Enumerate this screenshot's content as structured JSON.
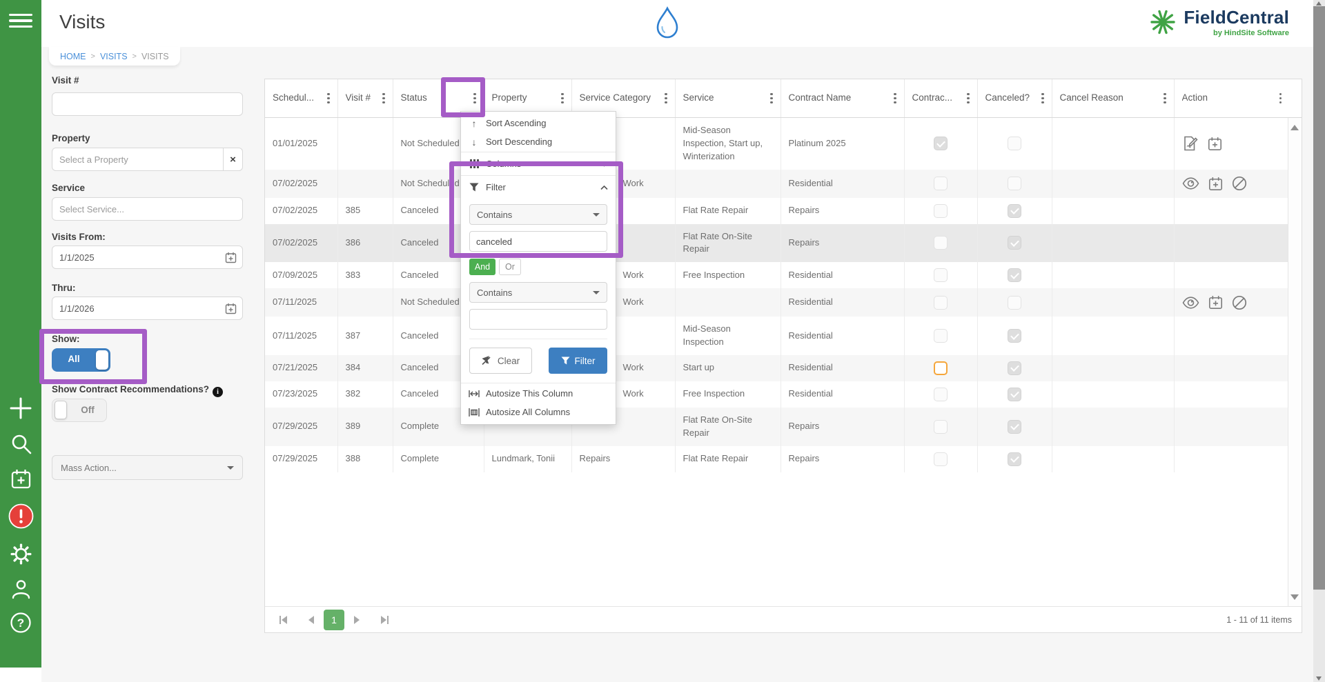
{
  "chrome": {
    "title": "Visits",
    "breadcrumb": {
      "items": [
        "HOME",
        "VISITS",
        "VISITS"
      ],
      "separator": ">"
    },
    "brand": {
      "name": "FieldCentral",
      "tagline": "by HindSite Software"
    }
  },
  "rail": {
    "icons": [
      "menu-icon",
      "plus-icon",
      "search-icon",
      "calendar-add-icon",
      "alert-icon",
      "gear-icon",
      "user-icon",
      "help-icon"
    ]
  },
  "filters": {
    "visit_number": {
      "label": "Visit #",
      "value": ""
    },
    "property": {
      "label": "Property",
      "placeholder": "Select a Property",
      "clear": "×"
    },
    "service": {
      "label": "Service",
      "placeholder": "Select Service..."
    },
    "visits_from": {
      "label": "Visits From:",
      "value": "1/1/2025"
    },
    "thru": {
      "label": "Thru:",
      "value": "1/1/2026"
    },
    "show": {
      "label": "Show:",
      "value": "All"
    },
    "contract_recommendations": {
      "label": "Show Contract Recommendations?",
      "value": "Off"
    },
    "mass_action": {
      "placeholder": "Mass Action..."
    }
  },
  "grid": {
    "columns": [
      {
        "label": "Schedul..."
      },
      {
        "label": "Visit #"
      },
      {
        "label": "Status"
      },
      {
        "label": "Property"
      },
      {
        "label": "Service Category"
      },
      {
        "label": "Service"
      },
      {
        "label": "Contract Name"
      },
      {
        "label": "Contrac..."
      },
      {
        "label": "Canceled?"
      },
      {
        "label": "Cancel Reason"
      },
      {
        "label": "Action"
      }
    ],
    "rows": [
      {
        "schedule_date": "01/01/2025",
        "visit_number": "",
        "status": "Not Scheduled",
        "property": "",
        "service_category": "",
        "category_shifted": false,
        "service": "Mid-Season Inspection, Start up, Winterization",
        "contract_name": "Platinum 2025",
        "contract_checked": true,
        "contract_focused": false,
        "canceled_checked": false,
        "cancel_reason": "",
        "actions": [
          "edit-contract",
          "schedule"
        ],
        "highlighted": false
      },
      {
        "schedule_date": "07/02/2025",
        "visit_number": "",
        "status": "Not Scheduled",
        "property": "",
        "service_category": "Work",
        "category_shifted": true,
        "service": "",
        "contract_name": "Residential",
        "contract_checked": false,
        "contract_focused": false,
        "canceled_checked": false,
        "cancel_reason": "",
        "actions": [
          "view",
          "schedule",
          "cancel"
        ],
        "highlighted": false
      },
      {
        "schedule_date": "07/02/2025",
        "visit_number": "385",
        "status": "Canceled",
        "property": "",
        "service_category": "",
        "category_shifted": false,
        "service": "Flat Rate Repair",
        "contract_name": "Repairs",
        "contract_checked": false,
        "contract_focused": false,
        "canceled_checked": true,
        "cancel_reason": "",
        "actions": [],
        "highlighted": false
      },
      {
        "schedule_date": "07/02/2025",
        "visit_number": "386",
        "status": "Canceled",
        "property": "",
        "service_category": "",
        "category_shifted": false,
        "service": "Flat Rate On-Site Repair",
        "contract_name": "Repairs",
        "contract_checked": false,
        "contract_focused": false,
        "canceled_checked": true,
        "cancel_reason": "",
        "actions": [],
        "highlighted": true
      },
      {
        "schedule_date": "07/09/2025",
        "visit_number": "383",
        "status": "Canceled",
        "property": "",
        "service_category": "Work",
        "category_shifted": true,
        "service": "Free Inspection",
        "contract_name": "Residential",
        "contract_checked": false,
        "contract_focused": false,
        "canceled_checked": true,
        "cancel_reason": "",
        "actions": [],
        "highlighted": false
      },
      {
        "schedule_date": "07/11/2025",
        "visit_number": "",
        "status": "Not Scheduled",
        "property": "",
        "service_category": "Work",
        "category_shifted": true,
        "service": "",
        "contract_name": "Residential",
        "contract_checked": false,
        "contract_focused": false,
        "canceled_checked": false,
        "cancel_reason": "",
        "actions": [
          "view",
          "schedule",
          "cancel"
        ],
        "highlighted": false
      },
      {
        "schedule_date": "07/11/2025",
        "visit_number": "387",
        "status": "Canceled",
        "property": "",
        "service_category": "",
        "category_shifted": false,
        "service": "Mid-Season Inspection",
        "contract_name": "Residential",
        "contract_checked": false,
        "contract_focused": false,
        "canceled_checked": true,
        "cancel_reason": "",
        "actions": [],
        "highlighted": false
      },
      {
        "schedule_date": "07/21/2025",
        "visit_number": "384",
        "status": "Canceled",
        "property": "",
        "service_category": "Work",
        "category_shifted": true,
        "service": "Start up",
        "contract_name": "Residential",
        "contract_checked": false,
        "contract_focused": true,
        "canceled_checked": true,
        "cancel_reason": "",
        "actions": [],
        "highlighted": false
      },
      {
        "schedule_date": "07/23/2025",
        "visit_number": "382",
        "status": "Canceled",
        "property": "",
        "service_category": "Work",
        "category_shifted": true,
        "service": "Free Inspection",
        "contract_name": "Residential",
        "contract_checked": false,
        "contract_focused": false,
        "canceled_checked": true,
        "cancel_reason": "",
        "actions": [],
        "highlighted": false
      },
      {
        "schedule_date": "07/29/2025",
        "visit_number": "389",
        "status": "Complete",
        "property": "",
        "service_category": "",
        "category_shifted": false,
        "service": "Flat Rate On-Site Repair",
        "contract_name": "Repairs",
        "contract_checked": false,
        "contract_focused": false,
        "canceled_checked": true,
        "cancel_reason": "",
        "actions": [],
        "highlighted": false
      },
      {
        "schedule_date": "07/29/2025",
        "visit_number": "388",
        "status": "Complete",
        "property": "Lundmark, Tonii",
        "service_category": "Repairs",
        "category_shifted": false,
        "service": "Flat Rate Repair",
        "contract_name": "Repairs",
        "contract_checked": false,
        "contract_focused": false,
        "canceled_checked": true,
        "cancel_reason": "",
        "actions": [],
        "highlighted": false
      }
    ]
  },
  "column_menu": {
    "sort_ascending": "Sort Ascending",
    "sort_descending": "Sort Descending",
    "columns": "Columns",
    "filter": "Filter",
    "operator1": "Contains",
    "value1": "canceled",
    "and_label": "And",
    "or_label": "Or",
    "operator2": "Contains",
    "value2": "",
    "clear_label": "Clear",
    "filter_label": "Filter",
    "autosize_column": "Autosize This Column",
    "autosize_all": "Autosize All Columns"
  },
  "pager": {
    "page": "1",
    "info": "1 - 11 of 11 items"
  },
  "colors": {
    "rail_green": "#3f9444",
    "brand_navy": "#1b3a5f",
    "brand_green": "#3fa344",
    "toggle_blue": "#3d7fc1",
    "and_green": "#4caf50",
    "pager_green": "#65b168",
    "alert_red": "#e5403a",
    "annotation_purple": "#a55cc6",
    "focus_orange": "#f5a63b",
    "link_blue": "#4a90d9"
  }
}
